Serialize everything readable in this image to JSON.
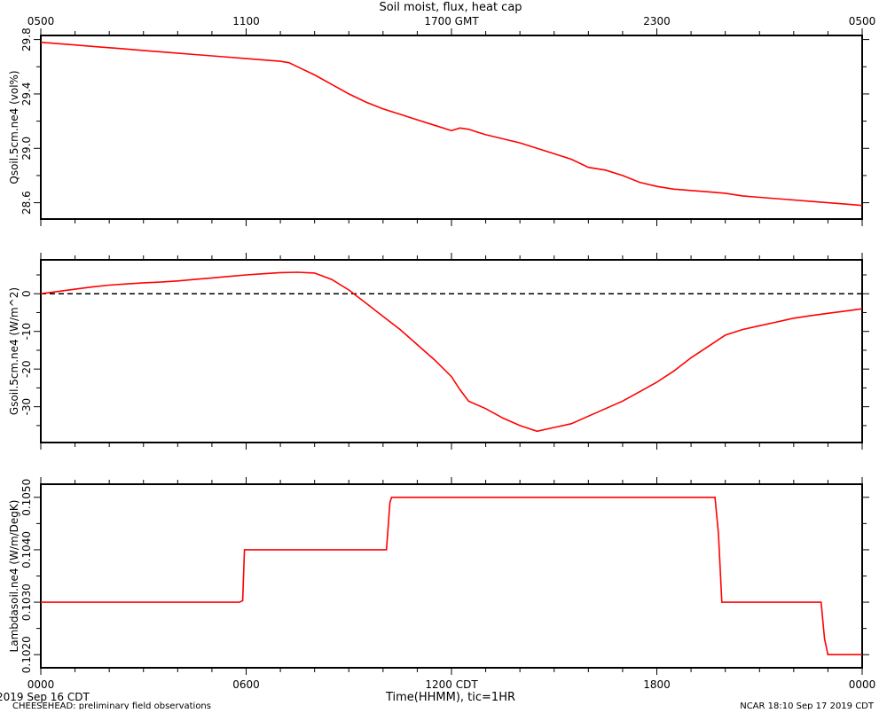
{
  "title": "Soil moist, flux, heat cap",
  "top_axis_ticks": [
    "0500",
    "1100",
    "1700 GMT",
    "2300",
    "0500"
  ],
  "bottom_axis_ticks": [
    "0000",
    "0600",
    "1200 CDT",
    "1800",
    "0000"
  ],
  "xlabel": "Time(HHMM), tic=1HR",
  "date_label": "2019 Sep 16 CDT",
  "footer_left": "CHEESEHEAD: preliminary field observations",
  "footer_right": "NCAR 18:10 Sep 17 2019 CDT",
  "colors": {
    "series": "#ff0000",
    "axes": "#000000",
    "zero_line": "#000000"
  },
  "chart_data": [
    {
      "type": "line",
      "ylabel": "Qsoil.5cm.ne4 (vol%)",
      "x_unit": "hours since 0000 CDT",
      "xlim": [
        0,
        24
      ],
      "ylim": [
        28.48,
        29.83
      ],
      "yticks": [
        28.6,
        29.0,
        29.4,
        29.8
      ],
      "ytick_labels": [
        "28.6",
        "29.0",
        "29.4",
        "29.8"
      ],
      "series": [
        {
          "x": [
            0,
            0.5,
            1,
            1.5,
            2,
            2.5,
            3,
            3.5,
            4,
            4.5,
            5,
            5.5,
            6,
            6.5,
            7,
            7.25,
            7.5,
            8,
            8.5,
            9,
            9.5,
            10,
            10.5,
            11,
            11.5,
            12,
            12.25,
            12.5,
            12.75,
            13,
            13.5,
            14,
            14.5,
            15,
            15.5,
            16,
            16.5,
            17,
            17.5,
            18,
            18.5,
            19,
            19.5,
            20,
            20.5,
            21,
            21.5,
            22,
            22.5,
            23,
            23.5,
            24
          ],
          "y": [
            29.78,
            29.77,
            29.76,
            29.75,
            29.74,
            29.73,
            29.72,
            29.71,
            29.7,
            29.69,
            29.68,
            29.67,
            29.66,
            29.65,
            29.64,
            29.63,
            29.6,
            29.54,
            29.47,
            29.4,
            29.34,
            29.29,
            29.25,
            29.21,
            29.17,
            29.13,
            29.15,
            29.14,
            29.12,
            29.1,
            29.07,
            29.04,
            29.0,
            28.96,
            28.92,
            28.86,
            28.84,
            28.8,
            28.75,
            28.72,
            28.7,
            28.69,
            28.68,
            28.67,
            28.65,
            28.64,
            28.63,
            28.62,
            28.61,
            28.6,
            28.59,
            28.58
          ]
        }
      ]
    },
    {
      "type": "line",
      "ylabel": "Gsoil.5cm.ne4 (W/m^2)",
      "x_unit": "hours since 0000 CDT",
      "xlim": [
        0,
        24
      ],
      "ylim": [
        -39.5,
        9
      ],
      "yticks": [
        -30,
        -20,
        -10,
        0
      ],
      "ytick_labels": [
        "-30",
        "-20",
        "-10",
        "0"
      ],
      "zero_line": true,
      "series": [
        {
          "x": [
            0,
            0.5,
            1,
            1.5,
            2,
            2.5,
            3,
            3.5,
            4,
            4.5,
            5,
            5.5,
            6,
            6.5,
            7,
            7.5,
            8,
            8.5,
            9,
            9.5,
            10,
            10.5,
            11,
            11.5,
            12,
            12.25,
            12.5,
            13,
            13.5,
            14,
            14.5,
            15,
            15.5,
            16,
            16.5,
            17,
            17.5,
            18,
            18.5,
            19,
            19.5,
            20,
            20.5,
            21,
            21.5,
            22,
            22.5,
            23,
            23.5,
            24
          ],
          "y": [
            0,
            0.6,
            1.2,
            1.8,
            2.3,
            2.6,
            2.9,
            3.1,
            3.4,
            3.8,
            4.2,
            4.6,
            5.0,
            5.3,
            5.6,
            5.7,
            5.5,
            3.8,
            1.0,
            -2.5,
            -6.0,
            -9.5,
            -13.5,
            -17.5,
            -22.0,
            -25.5,
            -28.5,
            -30.5,
            -33.0,
            -35.0,
            -36.5,
            -35.5,
            -34.5,
            -32.5,
            -30.5,
            -28.5,
            -26.0,
            -23.5,
            -20.5,
            -17.0,
            -14.0,
            -11.0,
            -9.5,
            -8.5,
            -7.5,
            -6.5,
            -5.8,
            -5.2,
            -4.6,
            -4.0
          ]
        }
      ]
    },
    {
      "type": "line",
      "ylabel": "Lambdasoil.ne4 (W/m/DegK)",
      "x_unit": "hours since 0000 CDT",
      "xlim": [
        0,
        24
      ],
      "ylim": [
        0.10175,
        0.10525
      ],
      "yticks": [
        0.102,
        0.103,
        0.104,
        0.105
      ],
      "ytick_labels": [
        "0.1020",
        "0.1030",
        "0.1040",
        "0.1050"
      ],
      "series": [
        {
          "x": [
            0,
            5.8,
            5.9,
            5.95,
            10.1,
            10.2,
            10.25,
            19.7,
            19.8,
            19.9,
            22.8,
            22.9,
            23.0,
            24
          ],
          "y": [
            0.103,
            0.103,
            0.10303,
            0.104,
            0.104,
            0.1049,
            0.105,
            0.105,
            0.1043,
            0.103,
            0.103,
            0.1023,
            0.102,
            0.102
          ]
        }
      ]
    }
  ]
}
